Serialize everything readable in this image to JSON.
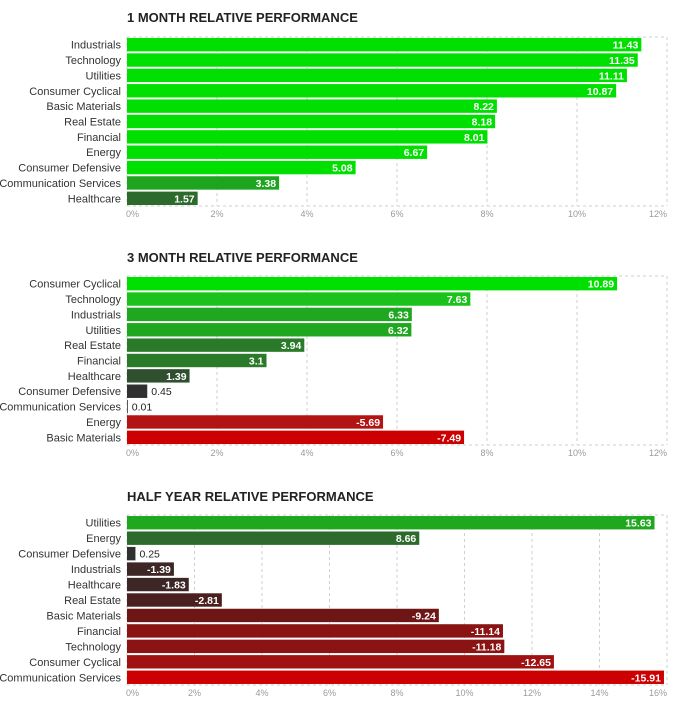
{
  "chart_data": [
    {
      "type": "bar",
      "orientation": "horizontal",
      "title": "1 MONTH RELATIVE PERFORMANCE",
      "categories": [
        "Industrials",
        "Technology",
        "Utilities",
        "Consumer Cyclical",
        "Basic Materials",
        "Real Estate",
        "Financial",
        "Energy",
        "Consumer Defensive",
        "Communication Services",
        "Healthcare"
      ],
      "values": [
        11.43,
        11.35,
        11.11,
        10.87,
        8.22,
        8.18,
        8.01,
        6.67,
        5.08,
        3.38,
        1.57
      ],
      "value_labels": [
        "11.43",
        "11.35",
        "11.11",
        "10.87",
        "8.22",
        "8.18",
        "8.01",
        "6.67",
        "5.08",
        "3.38",
        "1.57"
      ],
      "xlim": [
        0,
        12
      ],
      "ticks": [
        "0%",
        "2%",
        "4%",
        "6%",
        "8%",
        "10%",
        "12%"
      ],
      "tick_values": [
        0,
        2,
        4,
        6,
        8,
        10,
        12
      ],
      "colors": [
        "#00e000",
        "#00e000",
        "#00e000",
        "#00e000",
        "#00e000",
        "#00e000",
        "#00e000",
        "#00e000",
        "#00e000",
        "#1ea41e",
        "#2c6b2c"
      ],
      "grid": true
    },
    {
      "type": "bar",
      "orientation": "horizontal",
      "title": "3 MONTH RELATIVE PERFORMANCE",
      "categories": [
        "Consumer Cyclical",
        "Technology",
        "Industrials",
        "Utilities",
        "Real Estate",
        "Financial",
        "Healthcare",
        "Consumer Defensive",
        "Communication Services",
        "Energy",
        "Basic Materials"
      ],
      "values": [
        10.89,
        7.63,
        6.33,
        6.32,
        3.94,
        3.1,
        1.39,
        0.45,
        0.01,
        -5.69,
        -7.49
      ],
      "value_labels": [
        "10.89",
        "7.63",
        "6.33",
        "6.32",
        "3.94",
        "3.1",
        "1.39",
        "0.45",
        "0.01",
        "-5.69",
        "-7.49"
      ],
      "xlim": [
        0,
        12
      ],
      "ticks": [
        "0%",
        "2%",
        "4%",
        "6%",
        "8%",
        "10%",
        "12%"
      ],
      "tick_values": [
        0,
        2,
        4,
        6,
        8,
        10,
        12
      ],
      "colors": [
        "#00e000",
        "#1cc21c",
        "#1fa81f",
        "#1fa81f",
        "#2a7a2a",
        "#2a7a2a",
        "#2f4f2f",
        "#303030",
        "#303030",
        "#b21414",
        "#cc0000"
      ],
      "grid": true
    },
    {
      "type": "bar",
      "orientation": "horizontal",
      "title": "HALF YEAR RELATIVE PERFORMANCE",
      "categories": [
        "Utilities",
        "Energy",
        "Consumer Defensive",
        "Industrials",
        "Healthcare",
        "Real Estate",
        "Basic Materials",
        "Financial",
        "Technology",
        "Consumer Cyclical",
        "Communication Services"
      ],
      "values": [
        15.63,
        8.66,
        0.25,
        -1.39,
        -1.83,
        -2.81,
        -9.24,
        -11.14,
        -11.18,
        -12.65,
        -15.91
      ],
      "value_labels": [
        "15.63",
        "8.66",
        "0.25",
        "-1.39",
        "-1.83",
        "-2.81",
        "-9.24",
        "-11.14",
        "-11.18",
        "-12.65",
        "-15.91"
      ],
      "xlim": [
        0,
        16
      ],
      "ticks": [
        "0%",
        "2%",
        "4%",
        "6%",
        "8%",
        "10%",
        "12%",
        "14%",
        "16%"
      ],
      "tick_values": [
        0,
        2,
        4,
        6,
        8,
        10,
        12,
        14,
        16
      ],
      "colors": [
        "#1fa81f",
        "#2c6b2c",
        "#303030",
        "#3d2626",
        "#3d2626",
        "#4a1f1f",
        "#6e1616",
        "#8a1414",
        "#8a1414",
        "#a01212",
        "#cc0000"
      ],
      "grid": true
    }
  ]
}
